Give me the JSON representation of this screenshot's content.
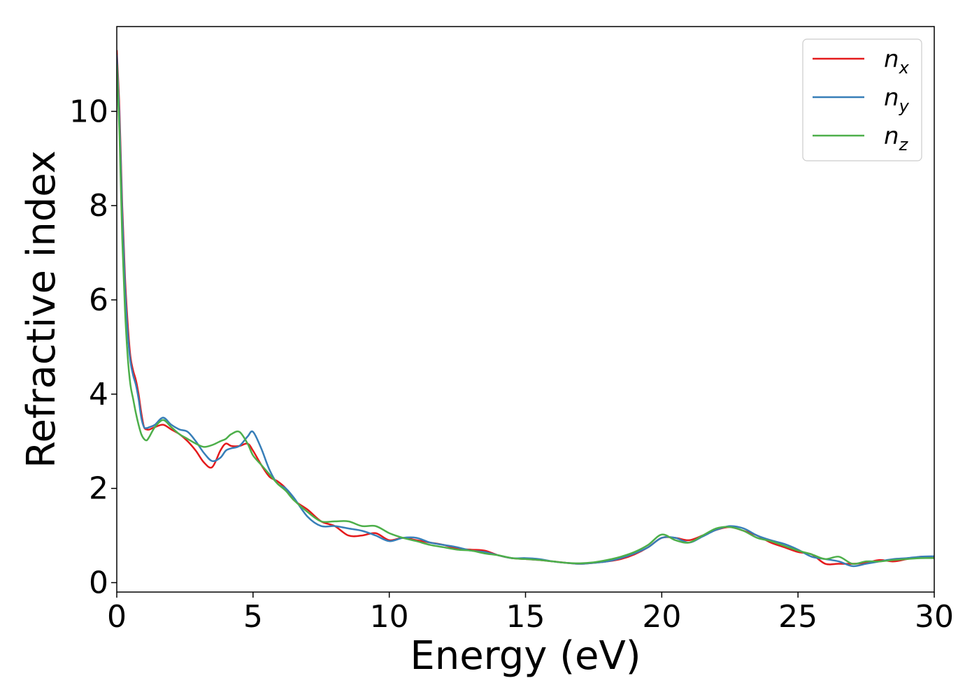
{
  "chart_data": {
    "type": "line",
    "xlabel": "Energy (eV)",
    "ylabel": "Refractive index",
    "xlim": [
      0,
      30
    ],
    "ylim": [
      -0.2,
      11.8
    ],
    "xticks": [
      "0",
      "5",
      "10",
      "15",
      "20",
      "25",
      "30"
    ],
    "yticks": [
      "0",
      "2",
      "4",
      "6",
      "8",
      "10"
    ],
    "grid": false,
    "legend_position": "top-right",
    "series": [
      {
        "name": "n",
        "subscript": "x",
        "color": "#e41a1c",
        "x": [
          0,
          0.1,
          0.2,
          0.3,
          0.4,
          0.5,
          0.6,
          0.7,
          0.8,
          0.9,
          1.0,
          1.1,
          1.2,
          1.4,
          1.7,
          2.0,
          2.3,
          2.6,
          2.9,
          3.2,
          3.5,
          3.8,
          4.0,
          4.2,
          4.5,
          4.8,
          5.0,
          5.3,
          5.6,
          5.9,
          6.2,
          6.5,
          7.0,
          7.5,
          8.0,
          8.5,
          9.0,
          9.5,
          10.0,
          10.5,
          11.0,
          11.5,
          12.0,
          12.5,
          13.0,
          13.5,
          14.0,
          14.5,
          15.0,
          15.5,
          16.0,
          16.5,
          17.0,
          17.5,
          18.0,
          18.5,
          19.0,
          19.5,
          20.0,
          20.5,
          21.0,
          21.5,
          22.0,
          22.5,
          23.0,
          23.5,
          24.0,
          24.5,
          25.0,
          25.5,
          26.0,
          26.5,
          27.0,
          27.5,
          28.0,
          28.5,
          29.0,
          29.5,
          30.0
        ],
        "values": [
          11.3,
          10.0,
          8.0,
          6.5,
          5.5,
          4.8,
          4.5,
          4.3,
          4.0,
          3.6,
          3.3,
          3.25,
          3.25,
          3.3,
          3.35,
          3.25,
          3.15,
          3.0,
          2.8,
          2.55,
          2.45,
          2.8,
          2.95,
          2.9,
          2.9,
          2.95,
          2.8,
          2.5,
          2.25,
          2.15,
          2.0,
          1.75,
          1.55,
          1.3,
          1.2,
          1.0,
          1.0,
          1.05,
          0.9,
          0.95,
          0.9,
          0.85,
          0.8,
          0.72,
          0.7,
          0.68,
          0.58,
          0.52,
          0.5,
          0.48,
          0.45,
          0.42,
          0.4,
          0.42,
          0.45,
          0.5,
          0.6,
          0.75,
          0.95,
          0.95,
          0.9,
          1.0,
          1.12,
          1.18,
          1.1,
          1.0,
          0.85,
          0.75,
          0.65,
          0.6,
          0.4,
          0.4,
          0.4,
          0.42,
          0.48,
          0.45,
          0.5,
          0.55,
          0.55
        ]
      },
      {
        "name": "n",
        "subscript": "y",
        "color": "#377eb8",
        "x": [
          0,
          0.1,
          0.2,
          0.3,
          0.4,
          0.5,
          0.6,
          0.7,
          0.8,
          0.9,
          1.0,
          1.1,
          1.2,
          1.4,
          1.7,
          2.0,
          2.3,
          2.6,
          2.9,
          3.2,
          3.5,
          3.8,
          4.0,
          4.2,
          4.5,
          4.8,
          5.0,
          5.3,
          5.6,
          5.9,
          6.2,
          6.5,
          7.0,
          7.5,
          8.0,
          8.5,
          9.0,
          9.5,
          10.0,
          10.5,
          11.0,
          11.5,
          12.0,
          12.5,
          13.0,
          13.5,
          14.0,
          14.5,
          15.0,
          15.5,
          16.0,
          16.5,
          17.0,
          17.5,
          18.0,
          18.5,
          19.0,
          19.5,
          20.0,
          20.5,
          21.0,
          21.5,
          22.0,
          22.5,
          23.0,
          23.5,
          24.0,
          24.5,
          25.0,
          25.5,
          26.0,
          26.5,
          27.0,
          27.5,
          28.0,
          28.5,
          29.0,
          29.5,
          30.0
        ],
        "values": [
          11.2,
          9.8,
          7.8,
          6.3,
          5.3,
          4.7,
          4.4,
          4.2,
          3.9,
          3.5,
          3.3,
          3.28,
          3.3,
          3.35,
          3.5,
          3.35,
          3.25,
          3.2,
          3.0,
          2.75,
          2.58,
          2.65,
          2.8,
          2.85,
          2.9,
          3.1,
          3.2,
          2.85,
          2.4,
          2.1,
          2.0,
          1.8,
          1.4,
          1.2,
          1.2,
          1.15,
          1.1,
          1.0,
          0.88,
          0.95,
          0.95,
          0.85,
          0.8,
          0.75,
          0.68,
          0.65,
          0.58,
          0.52,
          0.52,
          0.5,
          0.45,
          0.42,
          0.4,
          0.42,
          0.45,
          0.52,
          0.62,
          0.75,
          0.95,
          0.95,
          0.85,
          0.98,
          1.12,
          1.2,
          1.15,
          1.0,
          0.9,
          0.82,
          0.7,
          0.55,
          0.5,
          0.45,
          0.35,
          0.4,
          0.45,
          0.5,
          0.52,
          0.55,
          0.56
        ]
      },
      {
        "name": "n",
        "subscript": "z",
        "color": "#4daf4a",
        "x": [
          0,
          0.1,
          0.2,
          0.3,
          0.4,
          0.5,
          0.6,
          0.7,
          0.8,
          0.9,
          1.0,
          1.1,
          1.2,
          1.4,
          1.7,
          2.0,
          2.3,
          2.6,
          2.9,
          3.2,
          3.5,
          3.8,
          4.0,
          4.2,
          4.5,
          4.8,
          5.0,
          5.3,
          5.6,
          5.9,
          6.2,
          6.5,
          7.0,
          7.5,
          8.0,
          8.5,
          9.0,
          9.5,
          10.0,
          10.5,
          11.0,
          11.5,
          12.0,
          12.5,
          13.0,
          13.5,
          14.0,
          14.5,
          15.0,
          15.5,
          16.0,
          16.5,
          17.0,
          17.5,
          18.0,
          18.5,
          19.0,
          19.5,
          20.0,
          20.5,
          21.0,
          21.5,
          22.0,
          22.5,
          23.0,
          23.5,
          24.0,
          24.5,
          25.0,
          25.5,
          26.0,
          26.5,
          27.0,
          27.5,
          28.0,
          28.5,
          29.0,
          29.5,
          30.0
        ],
        "values": [
          11.0,
          9.5,
          7.3,
          5.8,
          4.8,
          4.2,
          3.9,
          3.6,
          3.35,
          3.15,
          3.05,
          3.02,
          3.1,
          3.3,
          3.45,
          3.3,
          3.15,
          3.05,
          2.95,
          2.88,
          2.92,
          3.0,
          3.05,
          3.15,
          3.2,
          2.95,
          2.7,
          2.5,
          2.3,
          2.1,
          1.95,
          1.75,
          1.5,
          1.3,
          1.3,
          1.3,
          1.2,
          1.2,
          1.05,
          0.95,
          0.88,
          0.8,
          0.75,
          0.7,
          0.68,
          0.62,
          0.58,
          0.52,
          0.5,
          0.48,
          0.45,
          0.42,
          0.41,
          0.43,
          0.48,
          0.55,
          0.65,
          0.8,
          1.02,
          0.9,
          0.85,
          1.0,
          1.15,
          1.18,
          1.1,
          0.95,
          0.88,
          0.78,
          0.68,
          0.6,
          0.5,
          0.55,
          0.4,
          0.45,
          0.45,
          0.48,
          0.5,
          0.52,
          0.52
        ]
      }
    ]
  }
}
